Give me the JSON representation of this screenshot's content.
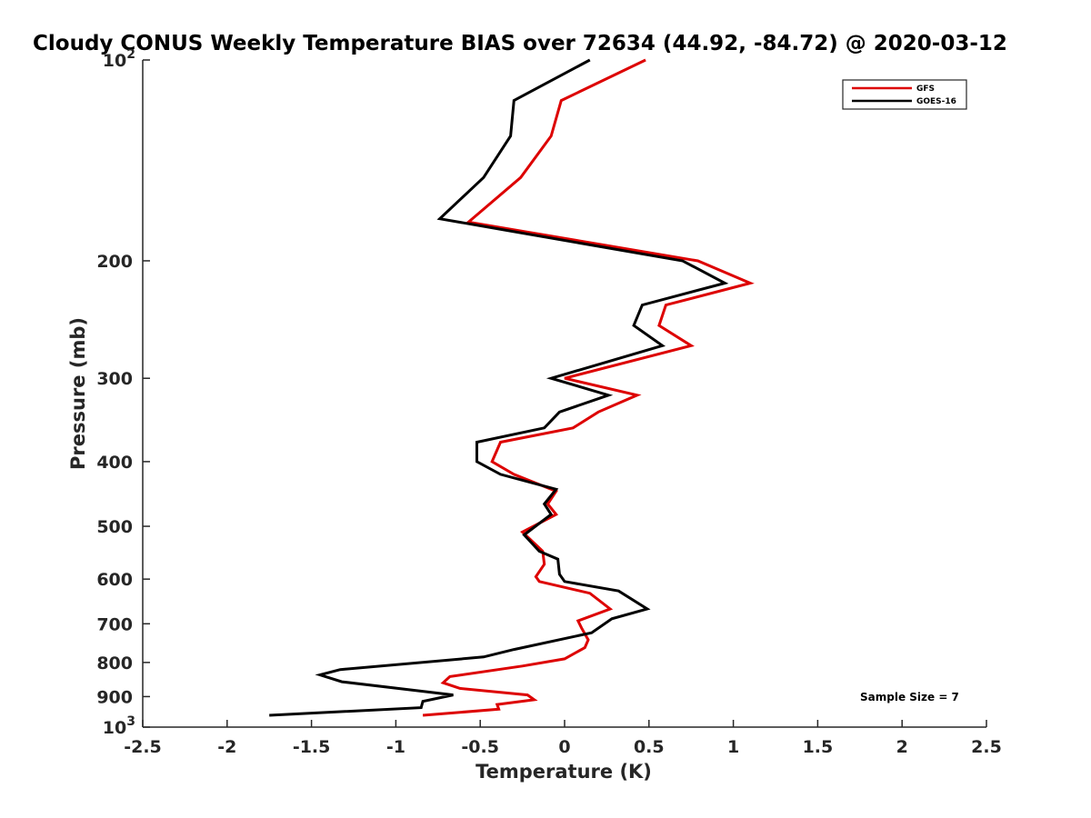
{
  "chart_data": {
    "type": "line",
    "title": "Cloudy CONUS Weekly Temperature BIAS over 72634 (44.92, -84.72) @ 2020-03-12",
    "xlabel": "Temperature (K)",
    "ylabel": "Pressure (mb)",
    "xlim": [
      -2.5,
      2.5
    ],
    "ylim": [
      1000,
      100
    ],
    "yscale": "log",
    "x_ticks": [
      -2.5,
      -2,
      -1.5,
      -1,
      -0.5,
      0,
      0.5,
      1,
      1.5,
      2,
      2.5
    ],
    "x_tick_labels": [
      "-2.5",
      "-2",
      "-1.5",
      "-1",
      "-0.5",
      "0",
      "0.5",
      "1",
      "1.5",
      "2",
      "2.5"
    ],
    "y_ticks": [
      {
        "value": 100,
        "label": "10",
        "exponent": "2"
      },
      {
        "value": 200,
        "label": "200"
      },
      {
        "value": 300,
        "label": "300"
      },
      {
        "value": 400,
        "label": "400"
      },
      {
        "value": 500,
        "label": "500"
      },
      {
        "value": 600,
        "label": "600"
      },
      {
        "value": 700,
        "label": "700"
      },
      {
        "value": 800,
        "label": "800"
      },
      {
        "value": 900,
        "label": "900"
      },
      {
        "value": 1000,
        "label": "10",
        "exponent": "3"
      }
    ],
    "grid": false,
    "legend_position": "top-right",
    "annotation": "Sample Size = 7",
    "series": [
      {
        "name": "GFS",
        "color": "#dd0000",
        "points": [
          {
            "x": 0.48,
            "p": 100
          },
          {
            "x": -0.02,
            "p": 115
          },
          {
            "x": -0.08,
            "p": 130
          },
          {
            "x": -0.26,
            "p": 150
          },
          {
            "x": -0.57,
            "p": 175
          },
          {
            "x": 0.79,
            "p": 200
          },
          {
            "x": 1.1,
            "p": 216
          },
          {
            "x": 0.6,
            "p": 233
          },
          {
            "x": 0.56,
            "p": 250
          },
          {
            "x": 0.75,
            "p": 268
          },
          {
            "x": 0.0,
            "p": 300
          },
          {
            "x": 0.43,
            "p": 318
          },
          {
            "x": 0.2,
            "p": 337
          },
          {
            "x": 0.05,
            "p": 356
          },
          {
            "x": -0.38,
            "p": 374
          },
          {
            "x": -0.43,
            "p": 400
          },
          {
            "x": -0.3,
            "p": 418
          },
          {
            "x": -0.05,
            "p": 443
          },
          {
            "x": -0.1,
            "p": 463
          },
          {
            "x": -0.05,
            "p": 480
          },
          {
            "x": -0.25,
            "p": 510
          },
          {
            "x": -0.13,
            "p": 545
          },
          {
            "x": -0.12,
            "p": 570
          },
          {
            "x": -0.17,
            "p": 595
          },
          {
            "x": -0.15,
            "p": 605
          },
          {
            "x": 0.15,
            "p": 630
          },
          {
            "x": 0.27,
            "p": 665
          },
          {
            "x": 0.08,
            "p": 693
          },
          {
            "x": 0.1,
            "p": 710
          },
          {
            "x": 0.14,
            "p": 740
          },
          {
            "x": 0.12,
            "p": 760
          },
          {
            "x": 0.0,
            "p": 790
          },
          {
            "x": -0.25,
            "p": 810
          },
          {
            "x": -0.68,
            "p": 840
          },
          {
            "x": -0.72,
            "p": 858
          },
          {
            "x": -0.62,
            "p": 875
          },
          {
            "x": -0.22,
            "p": 895
          },
          {
            "x": -0.18,
            "p": 910
          },
          {
            "x": -0.4,
            "p": 925
          },
          {
            "x": -0.39,
            "p": 940
          },
          {
            "x": -0.84,
            "p": 960
          }
        ]
      },
      {
        "name": "GOES-16",
        "color": "#000000",
        "points": [
          {
            "x": 0.15,
            "p": 100
          },
          {
            "x": -0.3,
            "p": 115
          },
          {
            "x": -0.32,
            "p": 130
          },
          {
            "x": -0.48,
            "p": 150
          },
          {
            "x": -0.74,
            "p": 173
          },
          {
            "x": 0.7,
            "p": 200
          },
          {
            "x": 0.95,
            "p": 216
          },
          {
            "x": 0.46,
            "p": 233
          },
          {
            "x": 0.41,
            "p": 250
          },
          {
            "x": 0.58,
            "p": 268
          },
          {
            "x": -0.08,
            "p": 300
          },
          {
            "x": 0.26,
            "p": 318
          },
          {
            "x": -0.03,
            "p": 337
          },
          {
            "x": -0.12,
            "p": 356
          },
          {
            "x": -0.52,
            "p": 374
          },
          {
            "x": -0.52,
            "p": 400
          },
          {
            "x": -0.38,
            "p": 418
          },
          {
            "x": -0.05,
            "p": 440
          },
          {
            "x": -0.12,
            "p": 463
          },
          {
            "x": -0.08,
            "p": 480
          },
          {
            "x": -0.24,
            "p": 515
          },
          {
            "x": -0.15,
            "p": 545
          },
          {
            "x": -0.04,
            "p": 560
          },
          {
            "x": -0.03,
            "p": 590
          },
          {
            "x": 0.0,
            "p": 605
          },
          {
            "x": 0.32,
            "p": 625
          },
          {
            "x": 0.49,
            "p": 665
          },
          {
            "x": 0.28,
            "p": 688
          },
          {
            "x": 0.16,
            "p": 722
          },
          {
            "x": -0.3,
            "p": 765
          },
          {
            "x": -0.48,
            "p": 785
          },
          {
            "x": -1.33,
            "p": 820
          },
          {
            "x": -1.45,
            "p": 835
          },
          {
            "x": -1.32,
            "p": 855
          },
          {
            "x": -0.66,
            "p": 895
          },
          {
            "x": -0.84,
            "p": 915
          },
          {
            "x": -0.85,
            "p": 935
          },
          {
            "x": -1.75,
            "p": 960
          }
        ]
      }
    ]
  }
}
